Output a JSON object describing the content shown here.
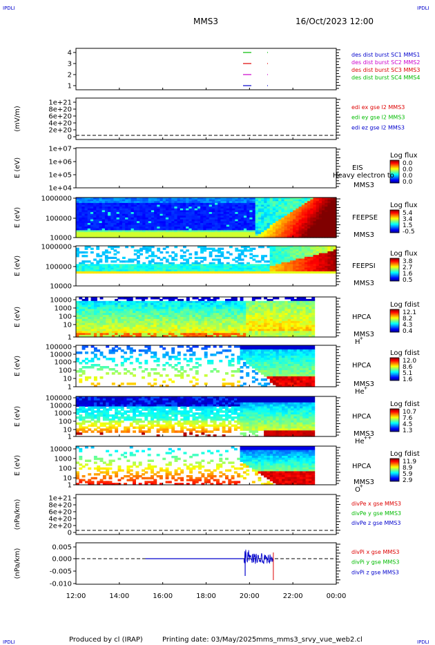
{
  "header": {
    "corner_left": "IPDLI",
    "corner_right": "IPDLI",
    "spacecraft": "MMS3",
    "date": "16/Oct/2023 12:00"
  },
  "footer": {
    "corner_left": "IPDLI",
    "corner_right": "IPDLI",
    "produced": "Produced by cl (IRAP)",
    "printing": "Printing date: 03/May/2025",
    "script": "mms_mms3_srvy_vue_web2.cl"
  },
  "time_axis": {
    "ticks": [
      "12:00",
      "14:00",
      "16:00",
      "18:00",
      "20:00",
      "22:00",
      "00:00"
    ]
  },
  "colors": {
    "red": "#dd0000",
    "green": "#00bb00",
    "blue": "#0000cc",
    "magenta": "#cc00cc"
  },
  "chart_data": [
    {
      "type": "line",
      "panel": "burst",
      "yticks": [
        "4",
        "3",
        "2",
        "1"
      ],
      "legend": [
        {
          "text": "des dist burst SC1 MMS1",
          "color": "blue"
        },
        {
          "text": "des dist burst SC2 MMS2",
          "color": "magenta"
        },
        {
          "text": "des dist burst SC3 MMS3",
          "color": "red"
        },
        {
          "text": "des dist burst SC4 MMS4",
          "color": "green"
        }
      ]
    },
    {
      "type": "line",
      "panel": "edi",
      "ylabel": "(mV/m)",
      "yticks": [
        "1e+21",
        "8e+20",
        "6e+20",
        "4e+20",
        "2e+20",
        "0"
      ],
      "legend": [
        {
          "text": "edi ex gse l2 MMS3",
          "color": "red"
        },
        {
          "text": "edi ey gse l2 MMS3",
          "color": "green"
        },
        {
          "text": "edi ez gse l2 MMS3",
          "color": "blue"
        }
      ]
    },
    {
      "type": "heatmap",
      "panel": "eis",
      "ylabel": "E (eV)",
      "yticks": [
        "1e+07",
        "1e+06",
        "1e+05",
        "1e+04"
      ],
      "name": "EIS",
      "sc": "MMS3",
      "overlay": "Heavy electron to",
      "cbar_title": "Log flux",
      "cbar_ticks": [
        "0.0",
        "0.0",
        "0.0",
        "0.0"
      ]
    },
    {
      "type": "heatmap",
      "panel": "feepse",
      "ylabel": "E (eV)",
      "yticks": [
        "1000000",
        "100000",
        "10000"
      ],
      "name": "FEEPSE",
      "sc": "MMS3",
      "cbar_title": "Log flux",
      "cbar_ticks": [
        "5.4",
        "3.4",
        "1.5",
        "-0.5"
      ]
    },
    {
      "type": "heatmap",
      "panel": "feepsi",
      "ylabel": "E (eV)",
      "yticks": [
        "1000000",
        "100000",
        "10000"
      ],
      "name": "FEEPSI",
      "sc": "MMS3",
      "cbar_title": "Log flux",
      "cbar_ticks": [
        "3.8",
        "2.7",
        "1.6",
        "0.5"
      ]
    },
    {
      "type": "heatmap",
      "panel": "hpca_h",
      "ylabel": "E (eV)",
      "yticks": [
        "10000",
        "1000",
        "100",
        "10",
        "1"
      ],
      "name": "HPCA",
      "sc": "MMS3",
      "species": "H",
      "charge": "+",
      "cbar_title": "Log fdist",
      "cbar_ticks": [
        "12.1",
        "8.2",
        "4.3",
        "0.4"
      ]
    },
    {
      "type": "heatmap",
      "panel": "hpca_he",
      "ylabel": "E (eV)",
      "yticks": [
        "100000",
        "10000",
        "1000",
        "100",
        "10",
        "1"
      ],
      "name": "HPCA",
      "sc": "MMS3",
      "species": "He",
      "charge": "+",
      "cbar_title": "Log fdist",
      "cbar_ticks": [
        "12.0",
        "8.6",
        "5.1",
        "1.6"
      ]
    },
    {
      "type": "heatmap",
      "panel": "hpca_hepp",
      "ylabel": "E (eV)",
      "yticks": [
        "100000",
        "10000",
        "1000",
        "100",
        "10",
        "1"
      ],
      "name": "HPCA",
      "sc": "MMS3",
      "species": "He",
      "charge": "++",
      "cbar_title": "Log fdist",
      "cbar_ticks": [
        "10.7",
        "7.6",
        "4.5",
        "1.3"
      ]
    },
    {
      "type": "heatmap",
      "panel": "hpca_o",
      "ylabel": "E (eV)",
      "yticks": [
        "10000",
        "1000",
        "100",
        "10",
        "1"
      ],
      "name": "HPCA",
      "sc": "MMS3",
      "species": "O",
      "charge": "+",
      "cbar_title": "Log fdist",
      "cbar_ticks": [
        "11.9",
        "8.9",
        "5.9",
        "2.9"
      ]
    },
    {
      "type": "line",
      "panel": "divpe",
      "ylabel": "(nPa/km)",
      "yticks": [
        "1e+21",
        "8e+20",
        "6e+20",
        "4e+20",
        "2e+20",
        "0"
      ],
      "legend": [
        {
          "text": "divPe x gse MMS3",
          "color": "red"
        },
        {
          "text": "divPe y gse MMS3",
          "color": "green"
        },
        {
          "text": "divPe z gse MMS3",
          "color": "blue"
        }
      ]
    },
    {
      "type": "line",
      "panel": "divpi",
      "ylabel": "(nPa/km)",
      "yticks": [
        "0.005",
        "0.000",
        "-0.005",
        "-0.010"
      ],
      "legend": [
        {
          "text": "divPi x gse MMS3",
          "color": "red"
        },
        {
          "text": "divPi y gse MMS3",
          "color": "green"
        },
        {
          "text": "divPi z gse MMS3",
          "color": "blue"
        }
      ]
    }
  ]
}
